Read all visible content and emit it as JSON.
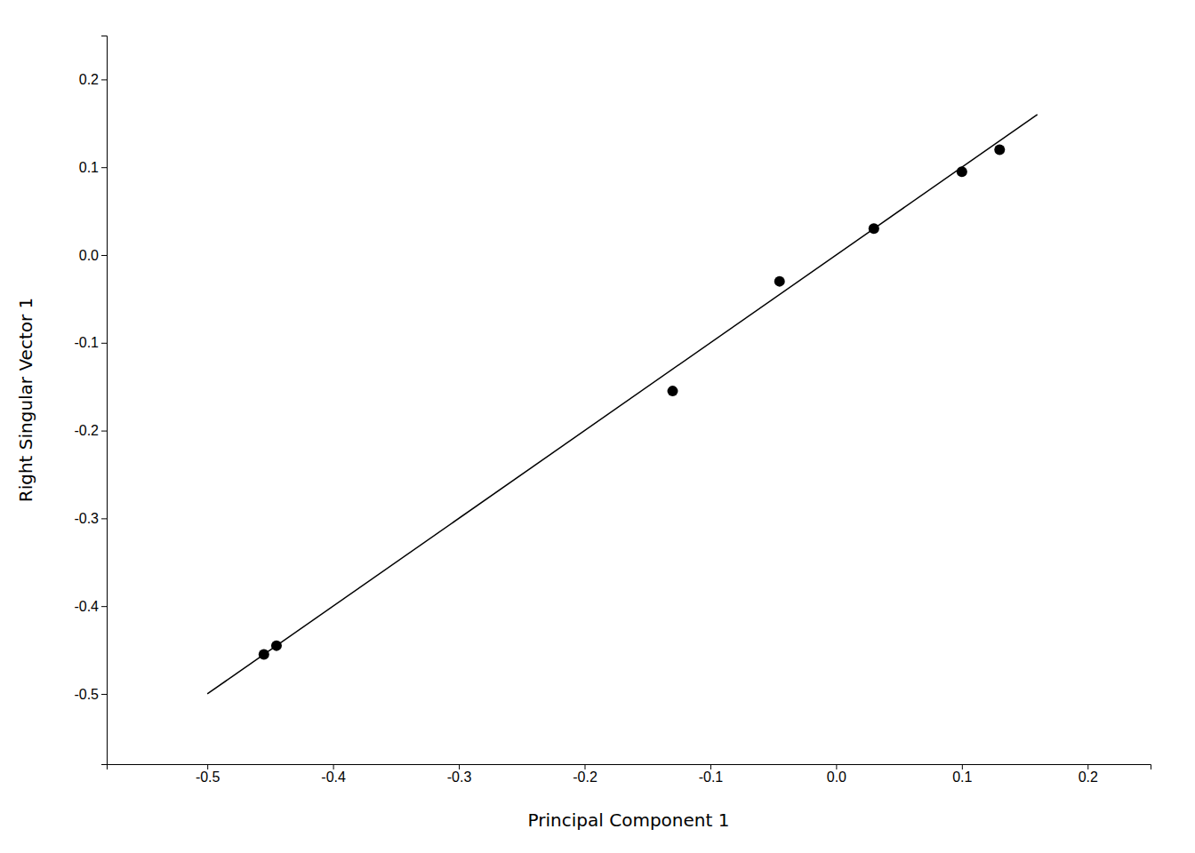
{
  "chart_data": {
    "type": "scatter",
    "title": "",
    "xlabel": "Principal Component 1",
    "ylabel": "Right Singular Vector 1",
    "xlim": [
      -0.58,
      0.25
    ],
    "ylim": [
      -0.58,
      0.25
    ],
    "xticks": [
      -0.5,
      -0.4,
      -0.3,
      -0.2,
      -0.1,
      {
        "value": 0.0,
        "label": "0.0"
      },
      0.1,
      0.2
    ],
    "yticks": [
      0.2,
      0.1,
      {
        "value": 0.0,
        "label": "0.0"
      },
      -0.1,
      -0.2,
      -0.3,
      -0.4,
      -0.5
    ],
    "grid": false,
    "series": [
      {
        "type": "line",
        "color": "#000000",
        "x": [
          -0.5,
          0.16
        ],
        "values": [
          -0.5,
          0.16
        ]
      },
      {
        "type": "scatter",
        "color": "#000000",
        "x": [
          -0.455,
          -0.445,
          -0.13,
          -0.045,
          0.03,
          0.1,
          0.13
        ],
        "values": [
          -0.455,
          -0.445,
          -0.155,
          -0.03,
          0.03,
          0.095,
          0.12
        ]
      }
    ]
  }
}
